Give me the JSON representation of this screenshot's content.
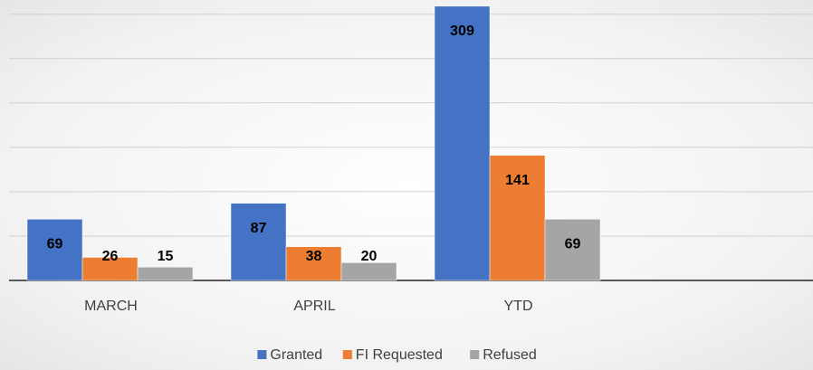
{
  "chart_data": {
    "type": "bar",
    "categories": [
      "MARCH",
      "APRIL",
      "YTD"
    ],
    "series": [
      {
        "name": "Granted",
        "color": "#4472c4",
        "values": [
          69,
          87,
          309
        ]
      },
      {
        "name": "FI Requested",
        "color": "#ed7d31",
        "values": [
          26,
          38,
          141
        ]
      },
      {
        "name": "Refused",
        "color": "#a5a5a5",
        "values": [
          15,
          20,
          69
        ]
      }
    ],
    "ylim": [
      0,
      316
    ],
    "yticks": [
      0,
      50,
      100,
      150,
      200,
      250,
      300
    ],
    "grid": true,
    "legend": "bottom"
  }
}
